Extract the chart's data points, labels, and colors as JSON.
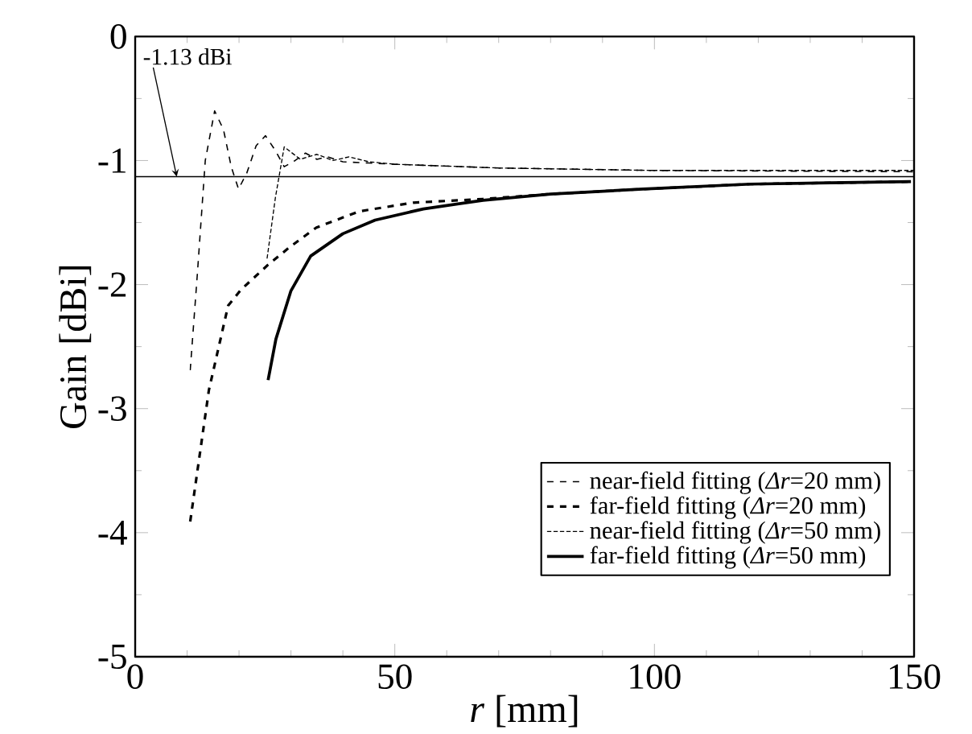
{
  "chart_data": {
    "type": "line",
    "xlabel": "*r* [mm]",
    "ylabel": "Gain [dBi]",
    "xlim": [
      0,
      150
    ],
    "ylim": [
      -5,
      0
    ],
    "xticks": [
      0,
      50,
      100,
      150
    ],
    "yticks": [
      -5,
      -4,
      -3,
      -2,
      -1,
      0
    ],
    "legend": "bottom right",
    "grid": false,
    "ref_lines": [
      {
        "axis": "y",
        "value": -1.13
      }
    ],
    "annotations": [
      {
        "text": "-1.13 dBi",
        "x": 8,
        "y": -1.13
      }
    ],
    "series": [
      {
        "name": "near-field fitting (*Δr*=20 mm)",
        "color": "#000000",
        "line_style": "dashed",
        "x": [
          10.6,
          12,
          13.5,
          15.3,
          17,
          18.5,
          19.9,
          21.5,
          23.3,
          25.1,
          27,
          28.7,
          30.8,
          32.8,
          35,
          37,
          40,
          45,
          50,
          70,
          100,
          150
        ],
        "values": [
          -2.69,
          -1.9,
          -1.0,
          -0.6,
          -0.75,
          -1.05,
          -1.23,
          -1.1,
          -0.88,
          -0.8,
          -0.92,
          -1.05,
          -1.0,
          -0.94,
          -0.99,
          -0.97,
          -1.01,
          -1.02,
          -1.03,
          -1.06,
          -1.08,
          -1.09
        ]
      },
      {
        "name": "far-field fitting (*Δr*=20 mm)",
        "color": "#000000",
        "line_style": "dashed",
        "x": [
          10.6,
          14.2,
          17.9,
          20.4,
          25.6,
          29.7,
          34.9,
          43.1,
          53.5,
          67,
          80,
          97.8,
          118.5,
          149.4
        ],
        "values": [
          -3.91,
          -2.85,
          -2.17,
          -2.04,
          -1.84,
          -1.7,
          -1.54,
          -1.41,
          -1.34,
          -1.31,
          -1.27,
          -1.23,
          -1.19,
          -1.17
        ]
      },
      {
        "name": "near-field fitting (*Δr*=50 mm)",
        "color": "#000000",
        "line_style": "dotted",
        "x": [
          25.4,
          27,
          28.7,
          31.8,
          35,
          38.1,
          41.2,
          45,
          50,
          70,
          100,
          150
        ],
        "values": [
          -1.79,
          -1.3,
          -0.89,
          -0.99,
          -0.95,
          -1.0,
          -0.97,
          -1.01,
          -1.03,
          -1.06,
          -1.08,
          -1.08
        ]
      },
      {
        "name": "far-field fitting (*Δr*=50 mm)",
        "color": "#000000",
        "line_style": "solid",
        "x": [
          25.6,
          27.1,
          30,
          33.8,
          40,
          46.2,
          55.5,
          67,
          80,
          97.8,
          118.5,
          149.4
        ],
        "values": [
          -2.77,
          -2.44,
          -2.05,
          -1.77,
          -1.59,
          -1.48,
          -1.39,
          -1.32,
          -1.27,
          -1.23,
          -1.19,
          -1.17
        ]
      }
    ]
  }
}
